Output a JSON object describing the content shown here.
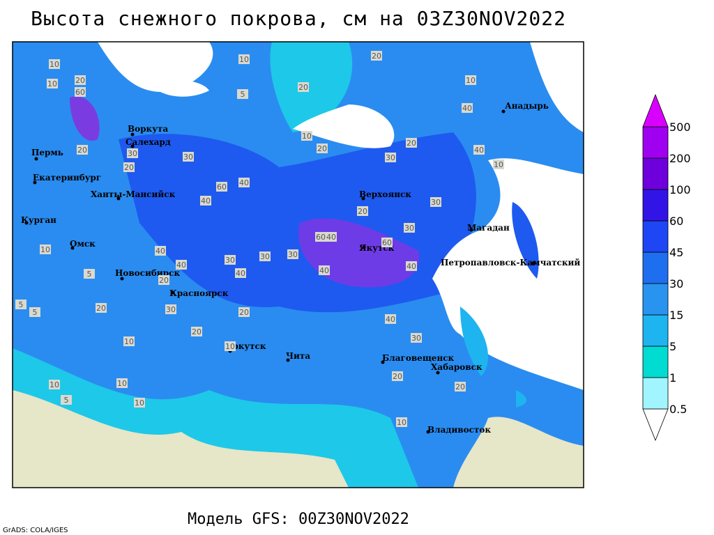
{
  "title": "Высота снежного покрова, см на 03Z30NOV2022",
  "model_run": "Модель GFS: 00Z30NOV2022",
  "credit": "GrADS: COLA/IGES",
  "colorbar": {
    "levels": [
      0.5,
      1,
      5,
      15,
      30,
      45,
      60,
      100,
      200,
      500
    ],
    "colors": [
      "#ffffff",
      "#a0f5ff",
      "#00dcd2",
      "#1eb4f0",
      "#2894f0",
      "#1e6ef0",
      "#1e46f5",
      "#3214e6",
      "#6e00dc",
      "#a000f0",
      "#d800ff"
    ]
  },
  "cities": [
    "Анадырь",
    "Воркута",
    "Салехард",
    "Пермь",
    "Екатеринбург",
    "Ханты-Мансийск",
    "Курган",
    "Омск",
    "Новосибирск",
    "Красноярск",
    "Иркутск",
    "Чита",
    "Верхоянск",
    "Магадан",
    "Якутск",
    "Петропавловск-Камчатский",
    "Благовещенск",
    "Хабаровск",
    "Владивосток"
  ],
  "contour_labels": [
    10,
    10,
    20,
    60,
    10,
    5,
    20,
    20,
    10,
    20,
    10,
    40,
    20,
    30,
    30,
    20,
    40,
    60,
    40,
    30,
    20,
    40,
    10,
    30,
    60,
    40,
    60,
    40,
    30,
    20,
    30,
    40,
    30,
    30,
    40,
    40,
    20,
    40,
    20,
    30,
    10,
    10,
    5,
    20,
    20,
    10,
    5,
    5,
    10,
    10,
    5,
    10,
    20,
    20,
    30,
    40,
    10
  ]
}
